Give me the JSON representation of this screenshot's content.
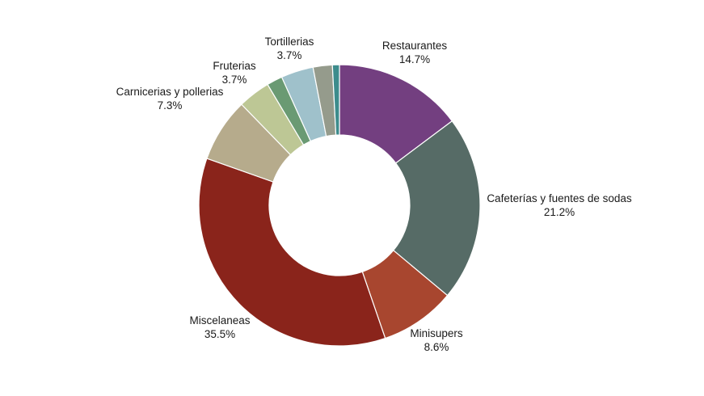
{
  "chart_data": {
    "type": "pie",
    "variant": "donut",
    "title": "",
    "legend": "none",
    "slices": [
      {
        "label": "Restaurantes",
        "value": 14.7,
        "display": "14.7%",
        "color": "#733f80",
        "labelled": true
      },
      {
        "label": "Cafeterías y fuentes de sodas",
        "value": 21.2,
        "display": "21.2%",
        "color": "#566b66",
        "labelled": true
      },
      {
        "label": "Minisupers",
        "value": 8.6,
        "display": "8.6%",
        "color": "#a8462f",
        "labelled": true
      },
      {
        "label": "Miscelaneas",
        "value": 35.5,
        "display": "35.5%",
        "color": "#8a241b",
        "labelled": true
      },
      {
        "label": "Carnicerias y pollerias",
        "value": 7.3,
        "display": "7.3%",
        "color": "#b6ab8c",
        "labelled": true
      },
      {
        "label": "Fruterias",
        "value": 3.7,
        "display": "3.7%",
        "color": "#bdc795",
        "labelled": true
      },
      {
        "value": 1.8,
        "color": "#6a9a73",
        "labelled": false
      },
      {
        "label": "Tortillerias",
        "value": 3.7,
        "display": "3.7%",
        "color": "#9fc1cb",
        "labelled": true
      },
      {
        "value": 2.2,
        "color": "#959b8c",
        "labelled": false
      },
      {
        "value": 0.8,
        "color": "#3d8c8c",
        "labelled": false
      }
    ]
  }
}
